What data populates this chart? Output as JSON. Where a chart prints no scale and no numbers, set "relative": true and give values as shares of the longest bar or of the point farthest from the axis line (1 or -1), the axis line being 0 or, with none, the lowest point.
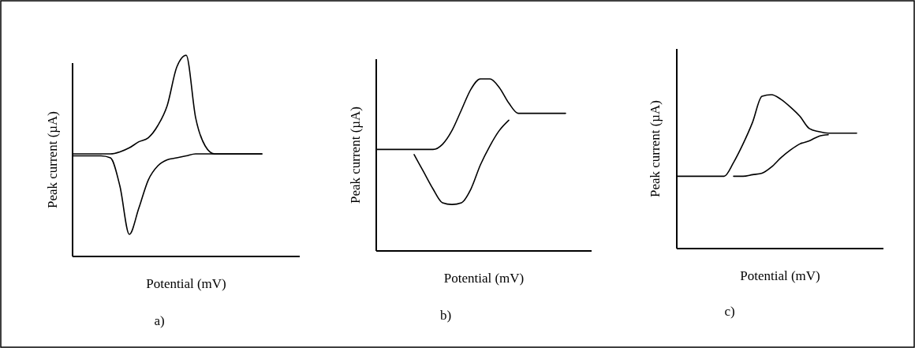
{
  "chart_data": [
    {
      "type": "line",
      "title": "a)",
      "xlabel": "Potential (mV)",
      "ylabel": "Peak current (µA)",
      "relative": true,
      "categories": [
        null,
        null,
        null,
        null,
        null,
        null,
        null,
        null,
        null,
        null,
        null,
        null,
        null,
        null,
        null,
        null,
        null,
        null,
        null,
        null,
        null,
        null,
        null,
        null,
        null
      ],
      "series": [
        {
          "color": "#000000",
          "values": [
            0.51,
            0.51,
            0.51,
            0.51,
            0.51,
            0.52,
            0.54,
            0.57,
            0.59,
            0.65,
            0.75,
            0.94,
            1,
            0.69,
            0.55,
            0.51,
            0.51,
            0.51,
            0.51,
            0.51,
            0.51,
            null,
            null,
            null,
            null
          ]
        },
        {
          "color": "#000000",
          "values": [
            0.5,
            0.5,
            0.5,
            0.5,
            0.49,
            0.35,
            0.11,
            0.24,
            0.38,
            0.45,
            0.48,
            0.49,
            0.5,
            0.51,
            0.51,
            0.51,
            0.51,
            0.51,
            0.51,
            0.51,
            0.51,
            null,
            null,
            null,
            null
          ]
        }
      ]
    },
    {
      "type": "line",
      "title": "b)",
      "xlabel": "Potential (mV)",
      "ylabel": "Peak current (µA)",
      "relative": true,
      "categories": [
        null,
        null,
        null,
        null,
        null,
        null,
        null,
        null,
        null,
        null,
        null,
        null,
        null,
        null,
        null,
        null,
        null,
        null,
        null,
        null,
        null
      ],
      "series": [
        {
          "color": "#000000",
          "values": [
            0.59,
            0.59,
            0.59,
            0.59,
            0.59,
            0.59,
            0.59,
            0.62,
            0.7,
            0.82,
            0.94,
            1,
            1,
            0.95,
            0.86,
            0.8,
            0.8,
            0.8,
            0.8,
            0.8,
            0.8
          ]
        },
        {
          "color": "#000000",
          "values": [
            null,
            null,
            null,
            null,
            0.56,
            0.46,
            0.36,
            0.28,
            0.27,
            0.28,
            0.36,
            0.5,
            0.61,
            0.7,
            0.76,
            null,
            null,
            null,
            null,
            null,
            null
          ]
        }
      ]
    },
    {
      "type": "line",
      "title": "c)",
      "xlabel": "Potential (mV)",
      "ylabel": "Peak current (µA)",
      "relative": true,
      "categories": [
        null,
        null,
        null,
        null,
        null,
        null,
        null,
        null,
        null,
        null,
        null,
        null,
        null,
        null,
        null,
        null,
        null,
        null,
        null,
        null,
        null
      ],
      "series": [
        {
          "color": "#000000",
          "values": [
            0.47,
            0.47,
            0.47,
            0.47,
            0.47,
            0.47,
            0.56,
            0.68,
            0.82,
            0.99,
            1,
            0.97,
            0.92,
            0.86,
            0.78,
            0.76,
            0.75,
            0.75,
            0.75,
            0.75,
            null
          ]
        },
        {
          "color": "#000000",
          "values": [
            null,
            null,
            null,
            null,
            null,
            null,
            0.47,
            0.47,
            0.48,
            0.49,
            0.53,
            0.59,
            0.64,
            0.68,
            0.7,
            0.73,
            0.74,
            null,
            null,
            null,
            null
          ]
        }
      ]
    }
  ]
}
